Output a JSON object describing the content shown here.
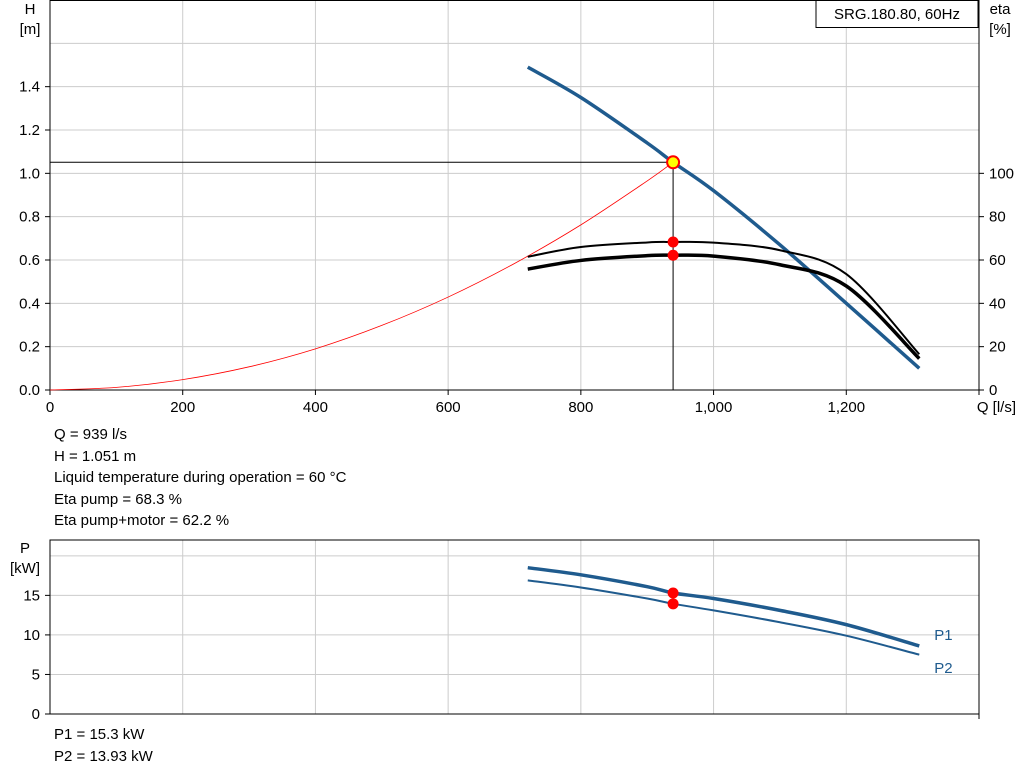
{
  "colors": {
    "curve": "#1f5b8e",
    "eta": "#000000",
    "system": "#ff0000",
    "grid": "#cccccc",
    "marker": "#ff0000",
    "duty_marker": "#ffff00"
  },
  "info": {
    "q_line": "Q = 939 l/s",
    "h_line": "H = 1.051 m",
    "temp_line": "Liquid temperature during operation = 60 °C",
    "eta_pump_line": "Eta pump = 68.3 %",
    "eta_total_line": "Eta pump+motor = 62.2 %",
    "p1_line": "P1 = 15.3 kW",
    "p2_line": "P2 = 13.93 kW"
  },
  "chart_data": [
    {
      "type": "line",
      "title": "SRG.180.80, 60Hz",
      "ylabel": [
        "H",
        "[m]"
      ],
      "y2label": [
        "eta",
        "[%]"
      ],
      "xlabel": "Q [l/s]",
      "xlim": [
        0,
        1400
      ],
      "ylim": [
        0,
        1.8
      ],
      "y2lim": [
        0,
        180
      ],
      "xticks": [
        0,
        200,
        400,
        600,
        800,
        1000,
        1200
      ],
      "xtick_labels": [
        "0",
        "200",
        "400",
        "600",
        "800",
        "1,000",
        "1,200"
      ],
      "yticks": [
        0.0,
        0.2,
        0.4,
        0.6,
        0.8,
        1.0,
        1.2,
        1.4
      ],
      "ytick_labels": [
        "0.0",
        "0.2",
        "0.4",
        "0.6",
        "0.8",
        "1.0",
        "1.2",
        "1.4"
      ],
      "y2ticks": [
        0,
        20,
        40,
        60,
        80,
        100
      ],
      "y2tick_labels": [
        "0",
        "20",
        "40",
        "60",
        "80",
        "100"
      ],
      "grid": true,
      "series": [
        {
          "id": "head",
          "axis": "left",
          "x": [
            720,
            800,
            900,
            939,
            1000,
            1100,
            1200,
            1310
          ],
          "y": [
            1.49,
            1.35,
            1.14,
            1.051,
            0.92,
            0.67,
            0.4,
            0.1
          ]
        },
        {
          "id": "system",
          "axis": "left",
          "x": [
            0,
            100,
            200,
            300,
            400,
            500,
            600,
            700,
            800,
            900,
            939
          ],
          "y": [
            0,
            0.012,
            0.048,
            0.107,
            0.19,
            0.298,
            0.429,
            0.584,
            0.762,
            0.965,
            1.051
          ]
        },
        {
          "id": "eta_pump",
          "axis": "right",
          "x": [
            720,
            800,
            900,
            939,
            1000,
            1100,
            1200,
            1310
          ],
          "y": [
            61.5,
            66,
            68.1,
            68.3,
            68,
            64.5,
            53.5,
            16.5
          ]
        },
        {
          "id": "eta_total",
          "axis": "right",
          "x": [
            720,
            800,
            900,
            939,
            1000,
            1100,
            1200,
            1310
          ],
          "y": [
            55.8,
            59.8,
            62,
            62.2,
            61.8,
            57.8,
            48,
            14.5
          ]
        }
      ],
      "duty_point": {
        "x": 939,
        "y": 1.051
      },
      "markers": [
        {
          "axis": "right",
          "x": 939,
          "y": 68.3
        },
        {
          "axis": "right",
          "x": 939,
          "y": 62.2
        }
      ]
    },
    {
      "type": "line",
      "ylabel": [
        "P",
        "[kW]"
      ],
      "xlim": [
        0,
        1400
      ],
      "ylim": [
        0,
        22
      ],
      "yticks": [
        0,
        5,
        10,
        15
      ],
      "ytick_labels": [
        "0",
        "5",
        "10",
        "15"
      ],
      "grid": true,
      "series": [
        {
          "name": "P1",
          "x": [
            720,
            800,
            900,
            939,
            1000,
            1100,
            1200,
            1310
          ],
          "y": [
            18.5,
            17.6,
            16.1,
            15.3,
            14.6,
            13.1,
            11.3,
            8.6
          ]
        },
        {
          "name": "P2",
          "x": [
            720,
            800,
            900,
            939,
            1000,
            1100,
            1200,
            1310
          ],
          "y": [
            16.9,
            16.0,
            14.6,
            13.93,
            13.1,
            11.6,
            9.9,
            7.5
          ]
        }
      ],
      "markers": [
        {
          "x": 939,
          "y": 15.3
        },
        {
          "x": 939,
          "y": 13.93
        }
      ]
    }
  ]
}
